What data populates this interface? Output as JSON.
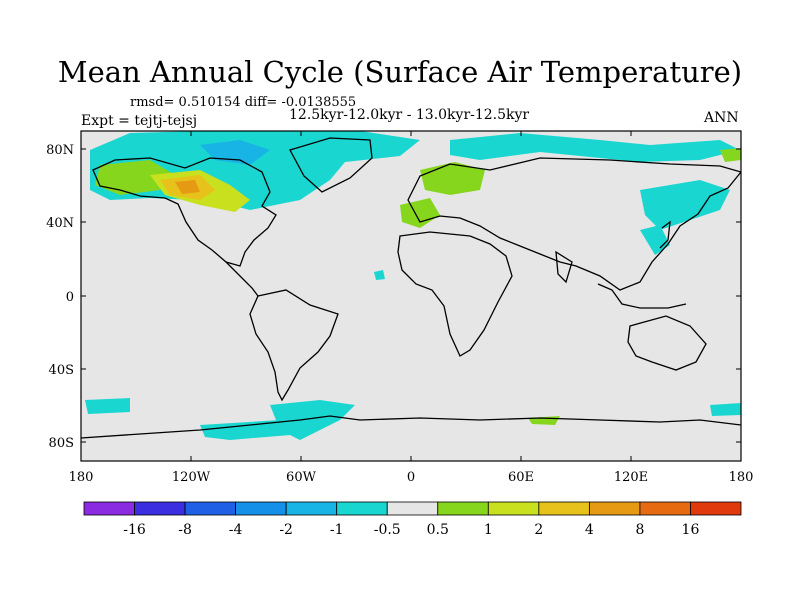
{
  "title": "Mean Annual Cycle (Surface Air Temperature)",
  "stats": "rmsd= 0.510154 diff= -0.0138555",
  "experiment": "Expt = tejtj-tejsj",
  "period": "12.5kyr-12.0kyr - 13.0kyr-12.5kyr",
  "season": "ANN",
  "lat_labels": [
    "80N",
    "40N",
    "0",
    "40S",
    "80S"
  ],
  "lon_labels": [
    "180",
    "120W",
    "60W",
    "0",
    "60E",
    "120E",
    "180"
  ],
  "colorbar": {
    "colors": [
      "#8a2be2",
      "#3a2ee0",
      "#1e5fe6",
      "#1490e8",
      "#18b4e6",
      "#1ad6d0",
      "#e6e6e6",
      "#86d61e",
      "#c8e01e",
      "#e6c21a",
      "#e69a14",
      "#e66a10",
      "#e03a0c"
    ],
    "labels": [
      "-16",
      "-8",
      "-4",
      "-2",
      "-1",
      "-0.5",
      "0.5",
      "1",
      "2",
      "4",
      "8",
      "16"
    ]
  },
  "map": {
    "background_color": "#e6e6e6",
    "coastline_color": "#000000"
  }
}
